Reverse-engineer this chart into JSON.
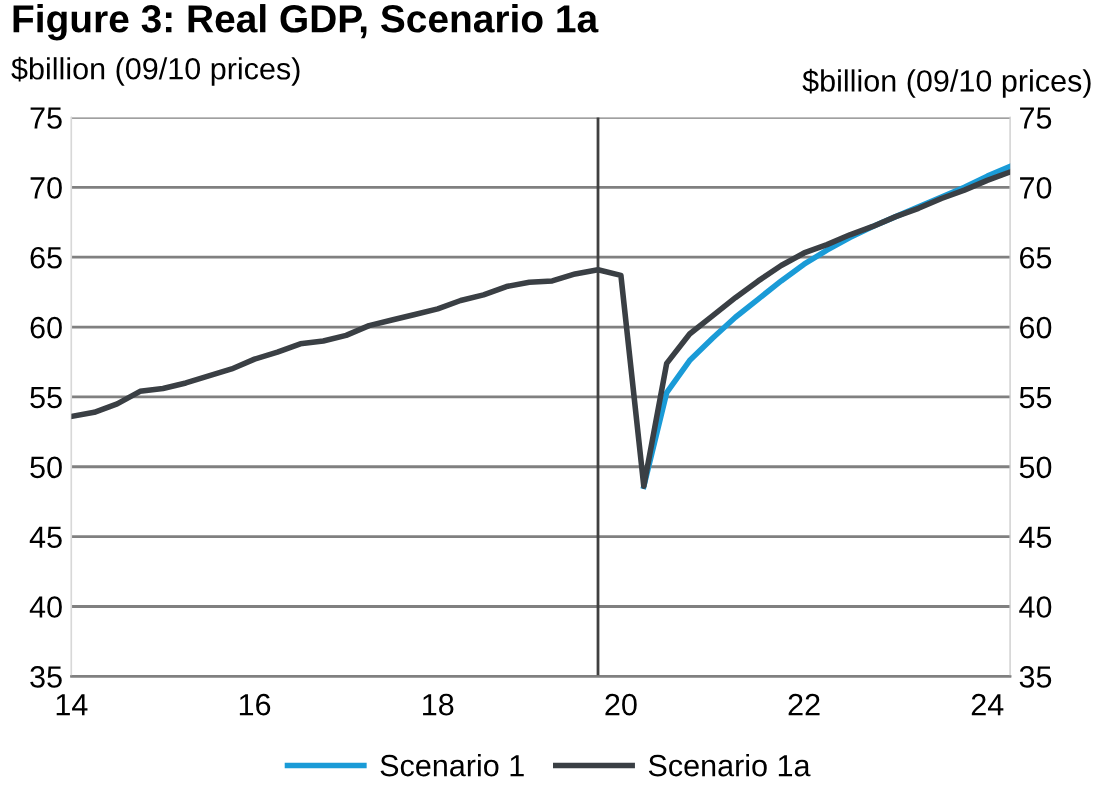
{
  "chart_data": {
    "type": "line",
    "title": "Figure 3: Real GDP, Scenario 1a",
    "ylabel": "$billion (09/10 prices)",
    "y2label": "$billion (09/10 prices)",
    "xlim": [
      14,
      24.25
    ],
    "xticks": [
      14,
      16,
      18,
      20,
      22,
      24
    ],
    "ylim": [
      35,
      75
    ],
    "yticks": [
      35,
      40,
      45,
      50,
      55,
      60,
      65,
      70,
      75
    ],
    "y2lim": [
      35,
      75
    ],
    "y2ticks": [
      35,
      40,
      45,
      50,
      55,
      60,
      65,
      70,
      75
    ],
    "grid": "y",
    "legend": "bottom",
    "marker": "none",
    "line_style": "solid",
    "ref_lines": [
      {
        "axis": "x",
        "value": 19.75,
        "label": null,
        "color": "#404040"
      }
    ],
    "series": [
      {
        "name": "Scenario 1",
        "color": "#1a9bd7",
        "x": [
          20.25,
          20.5,
          20.75,
          21.0,
          21.25,
          21.5,
          21.75,
          22.0,
          22.25,
          22.5,
          22.75,
          23.0,
          23.25,
          23.5,
          23.75,
          24.0,
          24.25
        ],
        "values": [
          48.6,
          55.3,
          57.6,
          59.2,
          60.7,
          62.0,
          63.3,
          64.5,
          65.5,
          66.4,
          67.2,
          67.9,
          68.6,
          69.3,
          70.0,
          70.8,
          71.5
        ]
      },
      {
        "name": "Scenario 1a",
        "color": "#3a3f44",
        "x": [
          14.0,
          14.25,
          14.5,
          14.75,
          15.0,
          15.25,
          15.5,
          15.75,
          16.0,
          16.25,
          16.5,
          16.75,
          17.0,
          17.25,
          17.5,
          17.75,
          18.0,
          18.25,
          18.5,
          18.75,
          19.0,
          19.25,
          19.5,
          19.75,
          20.0,
          20.25,
          20.5,
          20.75,
          21.0,
          21.25,
          21.5,
          21.75,
          22.0,
          22.25,
          22.5,
          22.75,
          23.0,
          23.25,
          23.5,
          23.75,
          24.0,
          24.25
        ],
        "values": [
          53.6,
          53.9,
          54.5,
          55.4,
          55.6,
          56.0,
          56.5,
          57.0,
          57.7,
          58.2,
          58.8,
          59.0,
          59.4,
          60.1,
          60.5,
          60.9,
          61.3,
          61.9,
          62.3,
          62.9,
          63.2,
          63.3,
          63.8,
          64.1,
          63.7,
          48.6,
          57.4,
          59.5,
          60.8,
          62.1,
          63.3,
          64.4,
          65.3,
          65.9,
          66.6,
          67.2,
          67.9,
          68.5,
          69.2,
          69.8,
          70.5,
          71.1
        ]
      }
    ]
  }
}
